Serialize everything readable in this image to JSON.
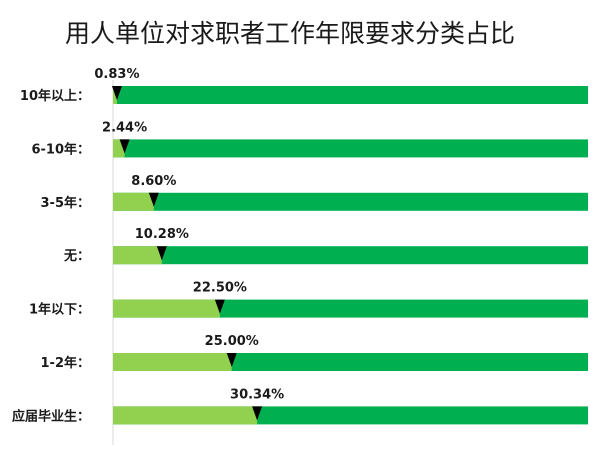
{
  "chart_data": {
    "type": "bar",
    "title": "用人单位对求职者工作年限要求分类占比",
    "categories": [
      "10年以上：",
      "6-10年：",
      "3-5年：",
      "无：",
      "1年以下：",
      "1-2年：",
      "应届毕业生："
    ],
    "values": [
      0.83,
      2.44,
      8.6,
      10.28,
      22.5,
      25.0,
      30.34
    ],
    "value_labels": [
      "0.83%",
      "2.44%",
      "8.60%",
      "10.28%",
      "22.50%",
      "25.00%",
      "30.34%"
    ],
    "xlim": [
      0,
      100
    ],
    "unit": "%",
    "colors": {
      "filled": "#92d050",
      "remainder": "#00b050",
      "marker": "#000000"
    },
    "legend": "none",
    "grid": false
  }
}
